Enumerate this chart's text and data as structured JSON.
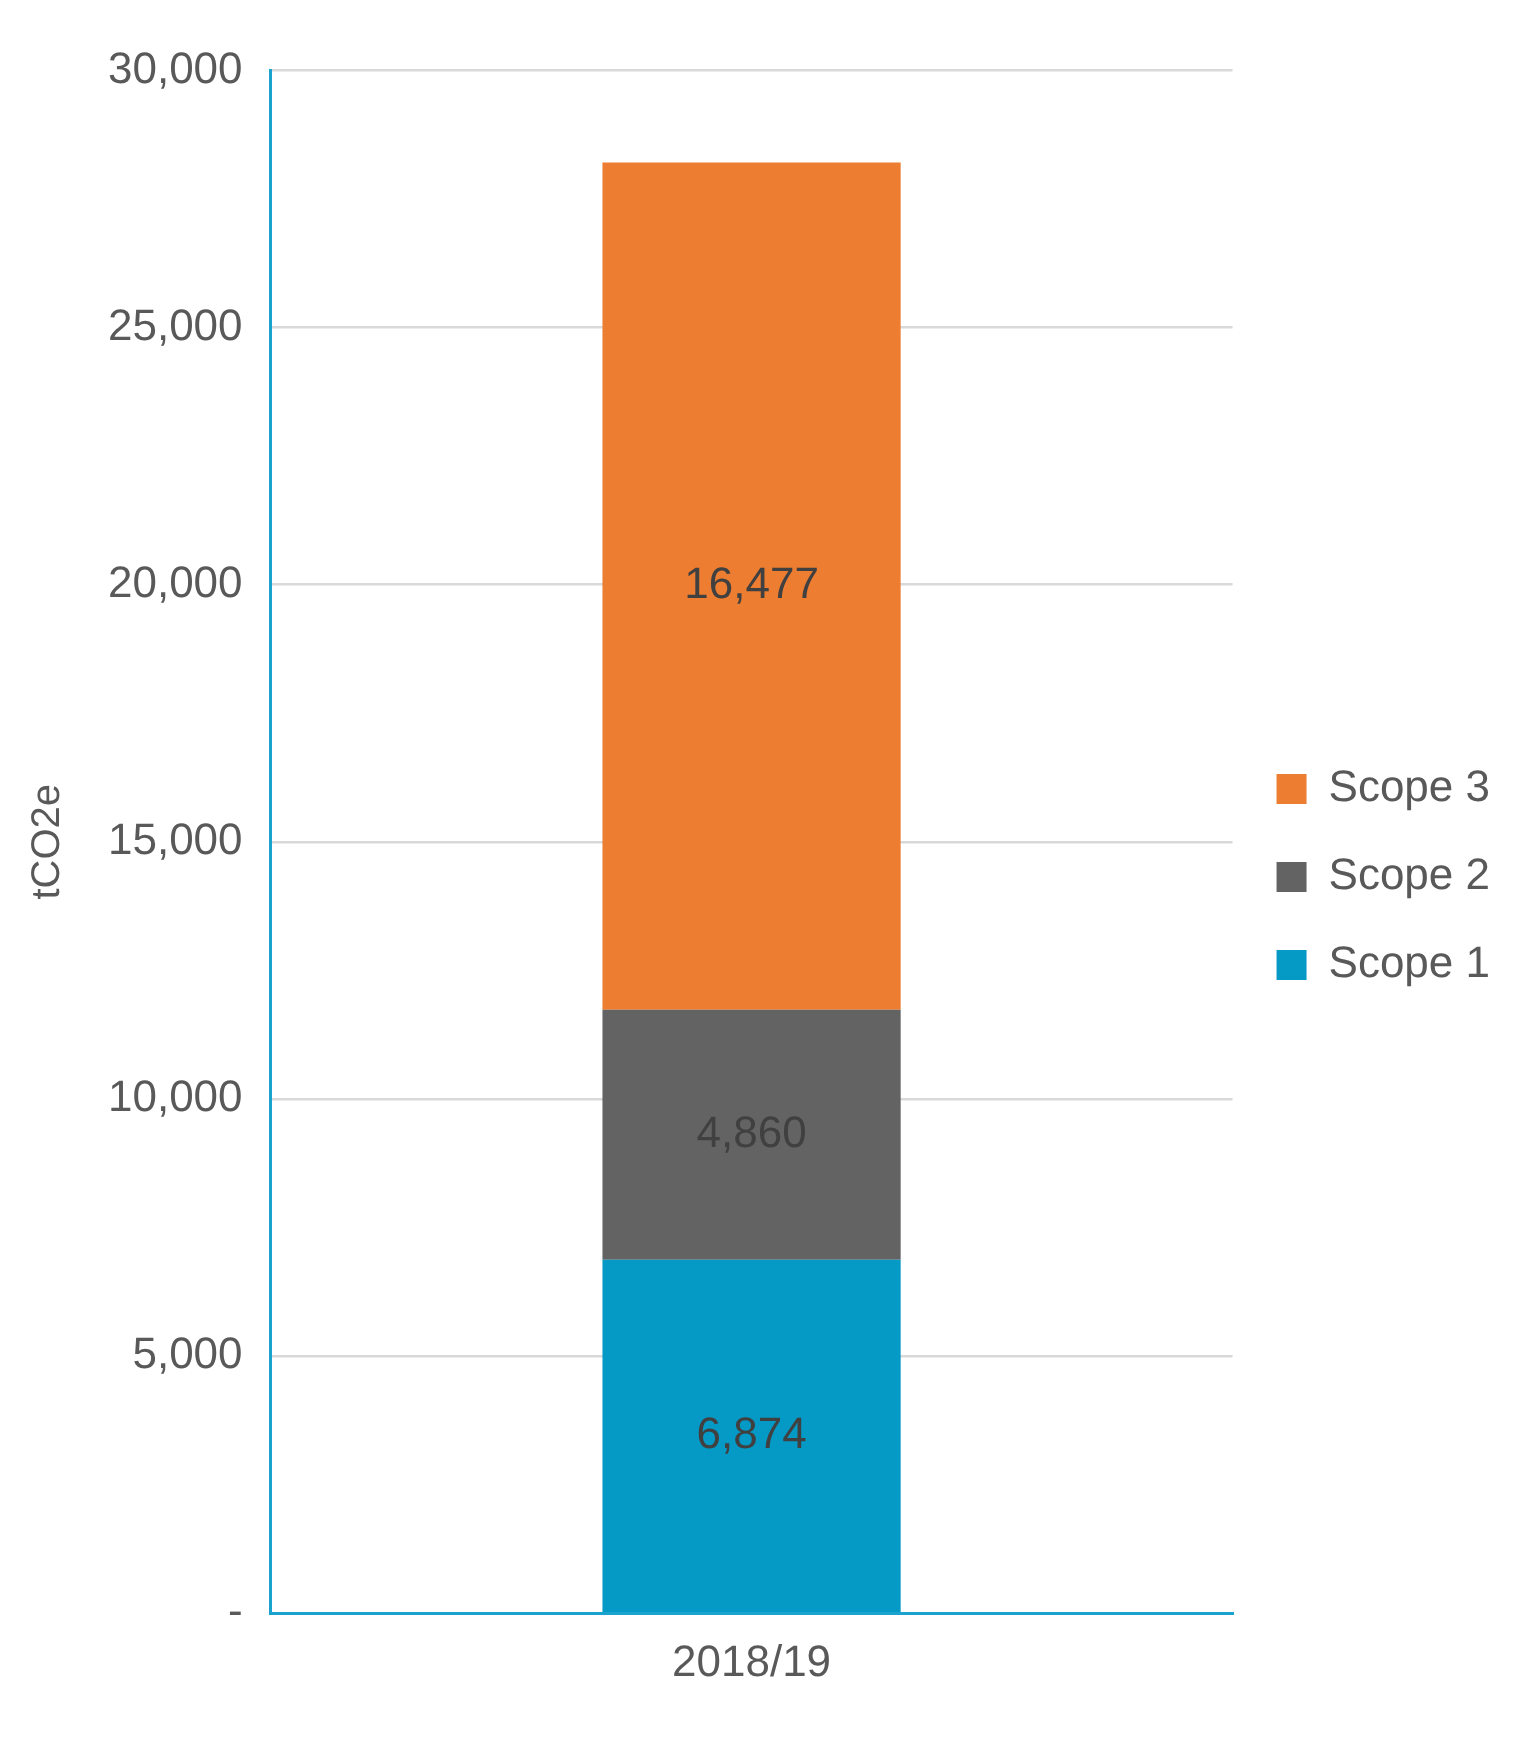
{
  "chart_data": {
    "type": "bar",
    "stacked": true,
    "ylabel": "tCO2e",
    "categories": [
      "2018/19"
    ],
    "series": [
      {
        "name": "Scope 1",
        "color": "#0599c6",
        "values": [
          6874
        ],
        "value_labels": [
          "6,874"
        ]
      },
      {
        "name": "Scope 2",
        "color": "#636363",
        "values": [
          4860
        ],
        "value_labels": [
          "4,860"
        ]
      },
      {
        "name": "Scope 3",
        "color": "#ed7d31",
        "values": [
          16477
        ],
        "value_labels": [
          "16,477"
        ]
      }
    ],
    "ylim": [
      0,
      30000
    ],
    "yticks": [
      {
        "value": 0,
        "label": "-"
      },
      {
        "value": 5000,
        "label": "5,000"
      },
      {
        "value": 10000,
        "label": "10,000"
      },
      {
        "value": 15000,
        "label": "15,000"
      },
      {
        "value": 20000,
        "label": "20,000"
      },
      {
        "value": 25000,
        "label": "25,000"
      },
      {
        "value": 30000,
        "label": "30,000"
      }
    ],
    "grid": "y",
    "legend": "right"
  }
}
